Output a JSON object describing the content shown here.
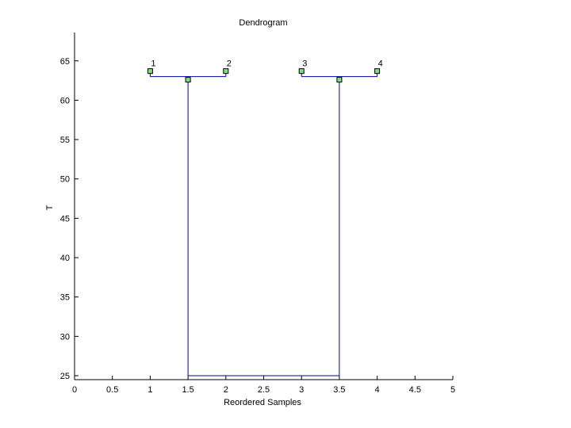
{
  "chart_data": {
    "type": "dendrogram",
    "title": "Dendrogram",
    "xlabel": "Reordered Samples",
    "ylabel": "T",
    "xlim": [
      0,
      5
    ],
    "xticks": [
      0,
      0.5,
      1,
      1.5,
      2,
      2.5,
      3,
      3.5,
      4,
      4.5,
      5
    ],
    "ylim": [
      24.5,
      68.6
    ],
    "yticks": [
      25,
      30,
      35,
      40,
      45,
      50,
      55,
      60,
      65
    ],
    "line_color": "#0000a0",
    "marker_color": "#80e080",
    "leaves": {
      "labels": [
        "1",
        "2",
        "3",
        "4"
      ],
      "x": [
        1,
        2,
        3,
        4
      ],
      "y": [
        63.7,
        63.7,
        63.7,
        63.7
      ]
    },
    "merge_nodes": {
      "x": [
        1.5,
        3.5
      ],
      "y": [
        62.6,
        62.6
      ]
    },
    "links": [
      {
        "x": [
          1,
          2
        ],
        "y": 63.0
      },
      {
        "x": [
          3,
          4
        ],
        "y": 63.0
      },
      {
        "x": [
          1.5,
          3.5
        ],
        "y": 25
      }
    ]
  }
}
